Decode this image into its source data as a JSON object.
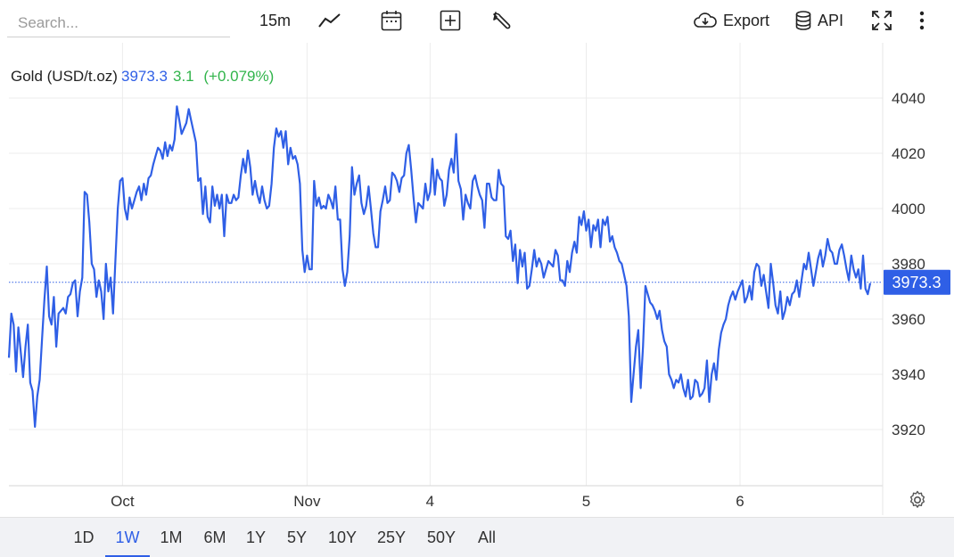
{
  "search": {
    "placeholder": "Search..."
  },
  "toolbar": {
    "interval_label": "15m",
    "export_label": "Export",
    "api_label": "API",
    "icons": [
      "line-chart-icon",
      "calendar-icon",
      "add-indicator-icon",
      "wrench-icon",
      "cloud-download-icon",
      "database-icon",
      "fullscreen-icon",
      "more-vertical-icon"
    ]
  },
  "legend": {
    "symbol": "Gold (USD/t.oz)",
    "price": "3973.3",
    "change": "3.1",
    "change_pct": "(+0.079%)"
  },
  "colors": {
    "line": "#2f5fe6",
    "up": "#31b44b",
    "badge": "#2f5fe6"
  },
  "ranges": [
    "1D",
    "1W",
    "1M",
    "6M",
    "1Y",
    "5Y",
    "10Y",
    "25Y",
    "50Y",
    "All"
  ],
  "active_range": "1W",
  "chart_data": {
    "type": "line",
    "title": "Gold (USD/t.oz)",
    "ylim": [
      3900,
      4050
    ],
    "y_ticks": [
      3920,
      3940,
      3960,
      3980,
      4000,
      4020,
      4040
    ],
    "y_tick_labels": [
      "3920",
      "3940",
      "3960",
      "3980",
      "4000",
      "4020",
      "4040"
    ],
    "x_ticks": [
      {
        "label": "Oct",
        "index": 48
      },
      {
        "label": "Nov",
        "index": 126
      },
      {
        "label": "4",
        "index": 178
      },
      {
        "label": "5",
        "index": 244
      },
      {
        "label": "6",
        "index": 309
      }
    ],
    "last_value": 3973.3,
    "last_label": "3973.3",
    "grid": true,
    "series": [
      {
        "values": [
          3946,
          3962,
          3958,
          3941,
          3957,
          3948,
          3939,
          3950,
          3958,
          3937,
          3934,
          3921,
          3932,
          3938,
          3953,
          3967,
          3979,
          3961,
          3958,
          3968,
          3950,
          3962,
          3963,
          3964,
          3962,
          3968,
          3969,
          3973,
          3974,
          3961,
          3970,
          3975,
          4006,
          4005,
          3995,
          3980,
          3978,
          3968,
          3974,
          3970,
          3960,
          3980,
          3970,
          3975,
          3962,
          3981,
          4000,
          4010,
          4011,
          4000,
          3996,
          4004,
          4000,
          4003,
          4006,
          4008,
          4003,
          4009,
          4005,
          4011,
          4012,
          4016,
          4019,
          4022,
          4021,
          4018,
          4024,
          4019,
          4023,
          4021,
          4025,
          4037,
          4032,
          4027,
          4029,
          4031,
          4036,
          4032,
          4028,
          4024,
          4010,
          4011,
          3998,
          4008,
          3997,
          3995,
          4008,
          4001,
          4005,
          4000,
          4005,
          3990,
          4005,
          4002,
          4002,
          4005,
          4003,
          4004,
          4012,
          4018,
          4013,
          4021,
          4015,
          4005,
          4010,
          4005,
          4002,
          4008,
          4003,
          4000,
          4001,
          4009,
          4022,
          4029,
          4026,
          4028,
          4022,
          4028,
          4016,
          4022,
          4018,
          4019,
          4016,
          4009,
          3985,
          3977,
          3983,
          3978,
          3978,
          4010,
          4001,
          4004,
          4000,
          4001,
          4000,
          4005,
          4003,
          4000,
          4008,
          3996,
          3996,
          3978,
          3972,
          3977,
          3990,
          4015,
          4005,
          4009,
          4012,
          4002,
          3998,
          4001,
          4008,
          4000,
          3991,
          3986,
          3986,
          3999,
          4003,
          4008,
          4002,
          4003,
          4013,
          4012,
          4010,
          4006,
          4011,
          4012,
          4020,
          4023,
          4014,
          4004,
          3995,
          4002,
          4001,
          4000,
          4009,
          4003,
          4006,
          4018,
          4005,
          4014,
          4011,
          4010,
          4001,
          4005,
          4014,
          4018,
          4013,
          4027,
          4010,
          4007,
          3996,
          4005,
          4002,
          4000,
          4010,
          4012,
          4008,
          4005,
          4003,
          3993,
          4009,
          4009,
          4004,
          4003,
          4003,
          4014,
          4009,
          4008,
          3990,
          3989,
          3992,
          3981,
          3987,
          3973,
          3985,
          3979,
          3984,
          3971,
          3972,
          3978,
          3985,
          3979,
          3982,
          3980,
          3975,
          3978,
          3981,
          3980,
          3979,
          3985,
          3983,
          3974,
          3974,
          3972,
          3981,
          3977,
          3984,
          3988,
          3984,
          3997,
          3994,
          3999,
          3992,
          3996,
          3986,
          3994,
          3992,
          3996,
          3986,
          3996,
          3994,
          3997,
          3988,
          3990,
          3986,
          3984,
          3981,
          3980,
          3976,
          3972,
          3961,
          3930,
          3940,
          3950,
          3956,
          3935,
          3950,
          3972,
          3969,
          3966,
          3965,
          3963,
          3960,
          3963,
          3956,
          3952,
          3950,
          3940,
          3938,
          3935,
          3938,
          3937,
          3940,
          3935,
          3932,
          3938,
          3931,
          3932,
          3938,
          3937,
          3932,
          3933,
          3935,
          3945,
          3930,
          3940,
          3944,
          3938,
          3949,
          3955,
          3958,
          3960,
          3965,
          3968,
          3970,
          3967,
          3970,
          3972,
          3974,
          3966,
          3968,
          3972,
          3967,
          3977,
          3980,
          3979,
          3972,
          3976,
          3970,
          3964,
          3980,
          3973,
          3965,
          3962,
          3970,
          3960,
          3963,
          3968,
          3965,
          3969,
          3970,
          3974,
          3968,
          3974,
          3980,
          3978,
          3984,
          3978,
          3972,
          3977,
          3982,
          3985,
          3979,
          3983,
          3989,
          3985,
          3984,
          3980,
          3980,
          3985,
          3987,
          3983,
          3978,
          3974,
          3983,
          3978,
          3975,
          3978,
          3971,
          3983,
          3971,
          3969,
          3973
        ]
      }
    ]
  }
}
